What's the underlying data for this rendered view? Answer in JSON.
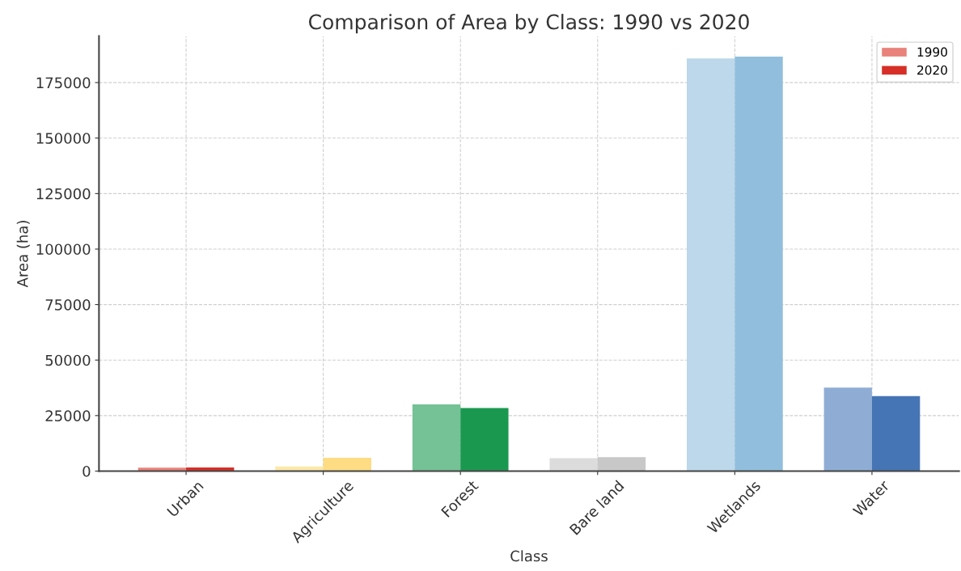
{
  "chart_data": {
    "type": "bar",
    "title": "Comparison of Area by Class: 1990 vs 2020",
    "xlabel": "Class",
    "ylabel": "Area (ha)",
    "categories": [
      "Urban",
      "Agriculture",
      "Forest",
      "Bare land",
      "Wetlands",
      "Water"
    ],
    "series": [
      {
        "name": "1990",
        "color": "#e8827a",
        "colors": [
          "#e8827a",
          "#fce8a8",
          "#74c295",
          "#dcdcdc",
          "#bcd8ea",
          "#8fadd4"
        ],
        "values": [
          1500,
          2100,
          30000,
          5800,
          185900,
          37600
        ]
      },
      {
        "name": "2020",
        "color": "#d62f27",
        "colors": [
          "#d62f27",
          "#fddc84",
          "#1b9850",
          "#c8c8c8",
          "#91bedd",
          "#4575b4"
        ],
        "values": [
          1600,
          6000,
          28400,
          6300,
          186700,
          33800
        ]
      }
    ],
    "ylim": [
      0,
      196000
    ],
    "yticks": [
      0,
      25000,
      50000,
      75000,
      100000,
      125000,
      150000,
      175000
    ],
    "grid": true,
    "legend": "top right"
  }
}
